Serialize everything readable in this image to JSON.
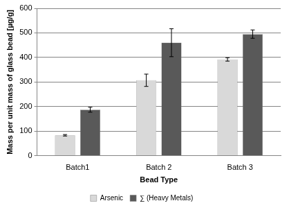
{
  "chart_data": {
    "type": "bar",
    "x_label": "Bead Type",
    "y_label": "Mass per unit mass of glass bead [µg/g]",
    "categories": [
      "Batch1",
      "Batch 2",
      "Batch 3"
    ],
    "series": [
      {
        "name": "Arsenic",
        "color": "#d9d9d9",
        "values": [
          83,
          307,
          392
        ],
        "errors": [
          3,
          25,
          7
        ]
      },
      {
        "name": "∑ (Heavy Metals)",
        "color": "#595959",
        "values": [
          187,
          460,
          495
        ],
        "errors": [
          10,
          57,
          17
        ]
      }
    ],
    "ylim": [
      0,
      600
    ],
    "yticks": [
      0,
      100,
      200,
      300,
      400,
      500,
      600
    ],
    "grid": true,
    "legend": "bottom"
  }
}
